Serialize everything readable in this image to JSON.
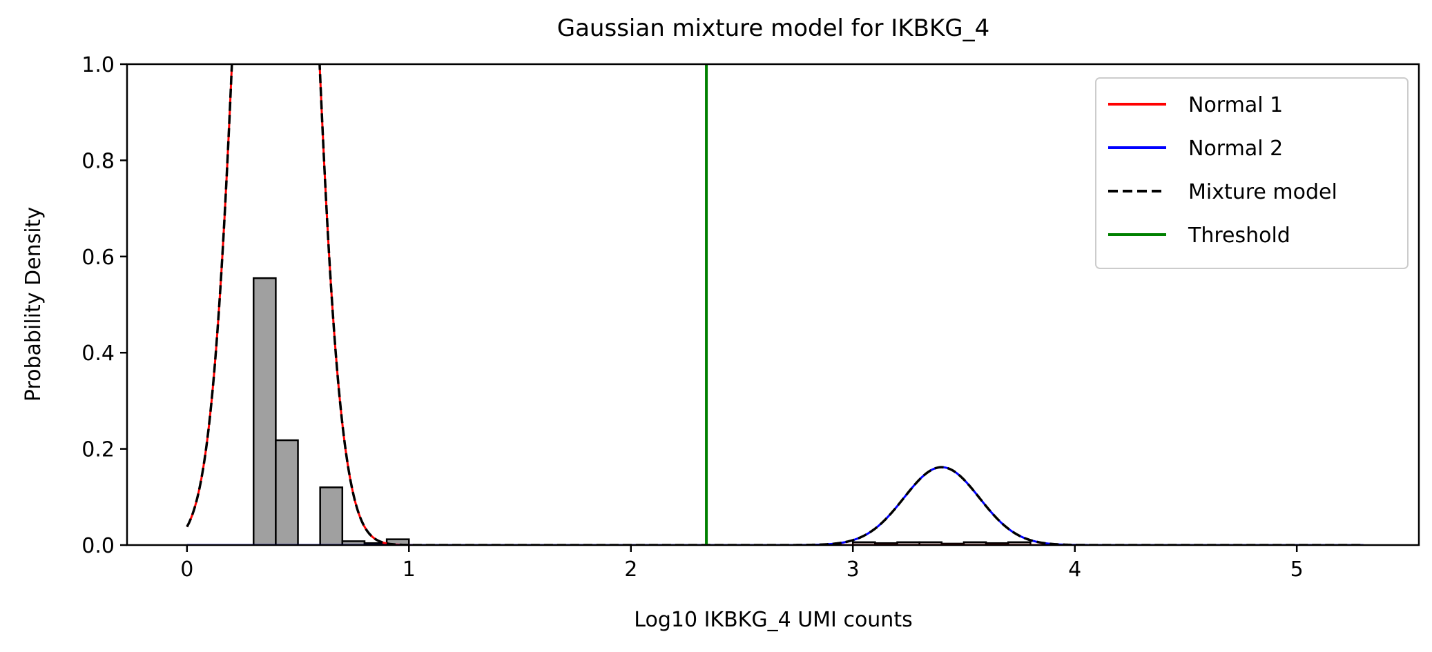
{
  "chart_data": {
    "type": "line",
    "title": "Gaussian mixture model for IKBKG_4",
    "xlabel": "Log10 IKBKG_4 UMI counts",
    "ylabel": "Probability Density",
    "xlim": [
      -0.27,
      5.55
    ],
    "ylim": [
      0.0,
      1.0
    ],
    "xticks": [
      0,
      1,
      2,
      3,
      4,
      5
    ],
    "xtick_labels": [
      "0",
      "1",
      "2",
      "3",
      "4",
      "5"
    ],
    "yticks": [
      0.0,
      0.2,
      0.4,
      0.6,
      0.8,
      1.0
    ],
    "ytick_labels": [
      "0.0",
      "0.2",
      "0.4",
      "0.6",
      "0.8",
      "1.0"
    ],
    "grid": false,
    "legend_position": "top-right",
    "histogram": {
      "bin_width": 0.1,
      "color": "#a0a0a0",
      "bins": [
        {
          "x": 0.3,
          "value": 0.555
        },
        {
          "x": 0.4,
          "value": 0.218
        },
        {
          "x": 0.6,
          "value": 0.12
        },
        {
          "x": 0.7,
          "value": 0.008
        },
        {
          "x": 0.8,
          "value": 0.004
        },
        {
          "x": 0.9,
          "value": 0.012
        },
        {
          "x": 3.0,
          "value": 0.006
        },
        {
          "x": 3.1,
          "value": 0.004
        },
        {
          "x": 3.2,
          "value": 0.006
        },
        {
          "x": 3.3,
          "value": 0.006
        },
        {
          "x": 3.4,
          "value": 0.003
        },
        {
          "x": 3.5,
          "value": 0.006
        },
        {
          "x": 3.6,
          "value": 0.004
        },
        {
          "x": 3.7,
          "value": 0.006
        }
      ]
    },
    "series": [
      {
        "name": "Normal 1",
        "kind": "gaussian",
        "mean": 0.4,
        "sd": 0.136,
        "weight": 0.98,
        "color": "#ff0000",
        "dash": "solid"
      },
      {
        "name": "Normal 2",
        "kind": "gaussian",
        "mean": 3.4,
        "sd": 0.17,
        "weight": 0.069,
        "color": "#0000ff",
        "dash": "solid"
      },
      {
        "name": "Mixture model",
        "kind": "sum",
        "color": "#000000",
        "dash": "dashed"
      },
      {
        "name": "Threshold",
        "kind": "vline",
        "x": 2.34,
        "color": "#008000",
        "dash": "solid"
      }
    ],
    "curve_x_range": [
      0.0,
      5.3
    ]
  }
}
